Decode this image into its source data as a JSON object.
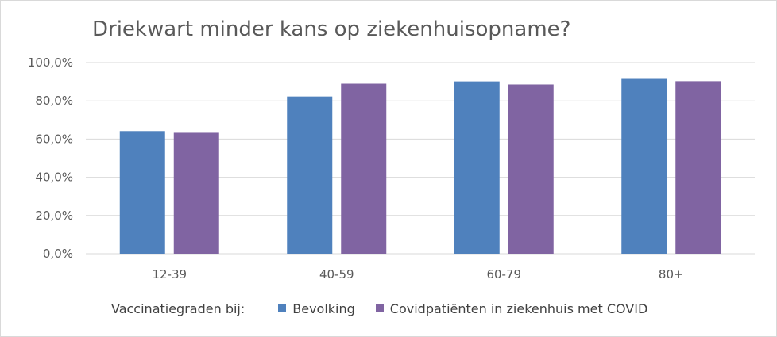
{
  "chart_data": {
    "type": "bar",
    "title": "Driekwart minder kans op ziekenhuisopname?",
    "categories": [
      "12-39",
      "40-59",
      "60-79",
      "80+"
    ],
    "series": [
      {
        "name": "Bevolking",
        "color": "#4f81bd",
        "values": [
          64.2,
          82.3,
          90.2,
          91.9
        ]
      },
      {
        "name": "Covidpatiënten in ziekenhuis met COVID",
        "color": "#8064a2",
        "values": [
          63.3,
          89.0,
          88.6,
          90.3
        ]
      }
    ],
    "ylim": [
      0,
      100
    ],
    "yticks": [
      0,
      20,
      40,
      60,
      80,
      100
    ],
    "ytick_labels": [
      "0,0%",
      "20,0%",
      "40,0%",
      "60,0%",
      "80,0%",
      "100,0%"
    ],
    "grid": true,
    "legend": {
      "title": "Vaccinatiegraden bij:",
      "position": "bottom"
    }
  }
}
